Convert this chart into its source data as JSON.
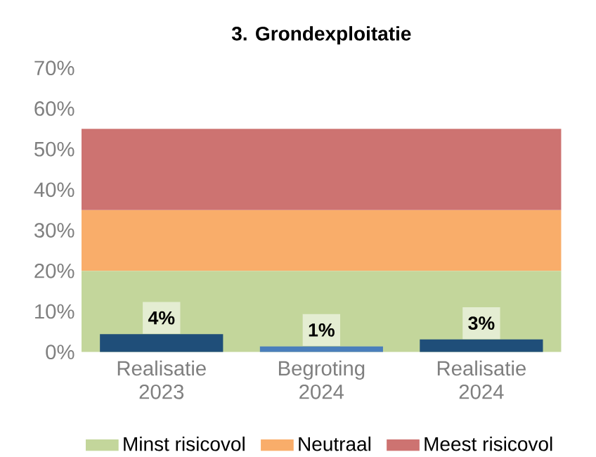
{
  "chart_data": {
    "type": "bar",
    "title": "3. Grondexploitatie",
    "categories": [
      "Realisatie 2023",
      "Begroting 2024",
      "Realisatie 2024"
    ],
    "values": [
      4.4,
      1.4,
      3.1
    ],
    "colors": [
      "#1f4e79",
      "#4a7ebb",
      "#1f4e79"
    ],
    "value_labels": [
      "4%",
      "1%",
      "3%"
    ],
    "bands": [
      {
        "axis": "y",
        "from": 0,
        "to": 20,
        "label": "Minst risicovol",
        "color": "#c3d69b"
      },
      {
        "axis": "y",
        "from": 20,
        "to": 35,
        "label": "Neutraal",
        "color": "#f9ad6a"
      },
      {
        "axis": "y",
        "from": 35,
        "to": 55,
        "label": "Meest risicovol",
        "color": "#cd7371"
      }
    ],
    "ylim": [
      0,
      70
    ],
    "yticks": [
      {
        "value": 0,
        "label": "0%"
      },
      {
        "value": 10,
        "label": "10%"
      },
      {
        "value": 20,
        "label": "20%"
      },
      {
        "value": 30,
        "label": "30%"
      },
      {
        "value": 40,
        "label": "40%"
      },
      {
        "value": 50,
        "label": "50%"
      },
      {
        "value": 60,
        "label": "60%"
      },
      {
        "value": 70,
        "label": "70%"
      }
    ],
    "legend": "bottom",
    "grid": false
  }
}
